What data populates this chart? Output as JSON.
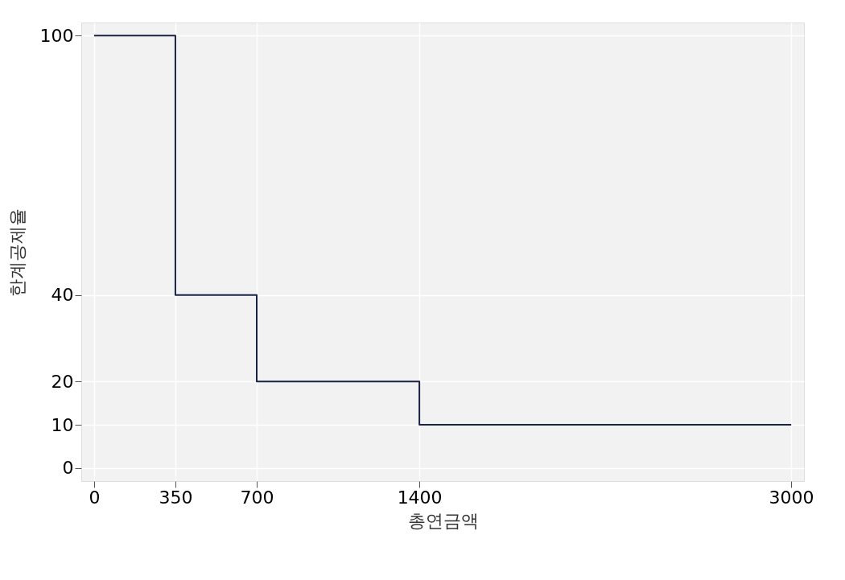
{
  "chart_data": {
    "type": "step",
    "xlabel": "총연금액",
    "ylabel": "한계공제율",
    "x": [
      0,
      350,
      700,
      1400,
      3000
    ],
    "series": [
      {
        "color": "#1a2344",
        "values": [
          100,
          40,
          20,
          10,
          10
        ]
      }
    ],
    "xlim": [
      -55,
      3055
    ],
    "ylim": [
      -3,
      103
    ],
    "xticks": [
      0,
      350,
      700,
      1400,
      3000
    ],
    "yticks": [
      0,
      10,
      20,
      40,
      100
    ],
    "grid": true,
    "marker": "none",
    "line_style": "solid"
  }
}
